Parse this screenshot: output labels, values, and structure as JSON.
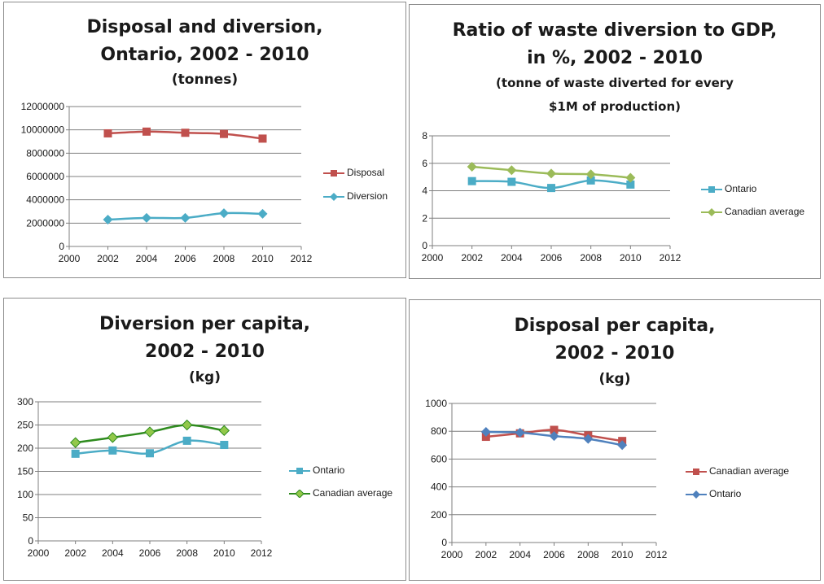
{
  "colors": {
    "disposal": "#c0504d",
    "diversion": "#4bacc6",
    "ontario_blue": "#4f81bd",
    "canada_light": "#9bbb59",
    "canada_dark": "#2e8b1e",
    "canada_dark_fill": "#92c84a",
    "grid": "#7f7f7f"
  },
  "chart_data": [
    {
      "type": "line",
      "title_lines": [
        "Disposal and diversion,",
        "Ontario, 2002 - 2010"
      ],
      "subtitle_lines": [
        "(tonnes)"
      ],
      "x": [
        2002,
        2004,
        2006,
        2008,
        2010
      ],
      "xlim": [
        2000,
        2012
      ],
      "xticks": [
        2000,
        2002,
        2004,
        2006,
        2008,
        2010,
        2012
      ],
      "ylim": [
        0,
        12000000
      ],
      "yticks": [
        0,
        2000000,
        4000000,
        6000000,
        8000000,
        10000000,
        12000000
      ],
      "grid": "horizontal",
      "legend": "right",
      "series": [
        {
          "name": "Disposal",
          "values": [
            9700000,
            9850000,
            9750000,
            9650000,
            9250000
          ],
          "color": "#c0504d",
          "marker": "square"
        },
        {
          "name": "Diversion",
          "values": [
            2300000,
            2450000,
            2450000,
            2850000,
            2800000
          ],
          "color": "#4bacc6",
          "marker": "diamond"
        }
      ]
    },
    {
      "type": "line",
      "title_lines": [
        "Ratio of waste diversion to GDP,",
        "in %, 2002 - 2010"
      ],
      "subtitle_lines": [
        "(tonne of waste diverted for every",
        "$1M of production)"
      ],
      "x": [
        2002,
        2004,
        2006,
        2008,
        2010
      ],
      "xlim": [
        2000,
        2012
      ],
      "xticks": [
        2000,
        2002,
        2004,
        2006,
        2008,
        2010,
        2012
      ],
      "ylim": [
        0,
        8
      ],
      "yticks": [
        0,
        2,
        4,
        6,
        8
      ],
      "grid": "horizontal",
      "legend": "right",
      "series": [
        {
          "name": "Ontario",
          "values": [
            4.7,
            4.65,
            4.2,
            4.75,
            4.45
          ],
          "color": "#4bacc6",
          "marker": "square"
        },
        {
          "name": "Canadian average",
          "values": [
            5.75,
            5.5,
            5.25,
            5.2,
            4.95
          ],
          "color": "#9bbb59",
          "marker": "diamond"
        }
      ]
    },
    {
      "type": "line",
      "title_lines": [
        "Diversion per capita,",
        "2002 - 2010"
      ],
      "subtitle_lines": [
        "(kg)"
      ],
      "x": [
        2002,
        2004,
        2006,
        2008,
        2010
      ],
      "xlim": [
        2000,
        2012
      ],
      "xticks": [
        2000,
        2002,
        2004,
        2006,
        2008,
        2010,
        2012
      ],
      "ylim": [
        0,
        300
      ],
      "yticks": [
        0,
        50,
        100,
        150,
        200,
        250,
        300
      ],
      "grid": "horizontal",
      "legend": "right",
      "series": [
        {
          "name": "Ontario",
          "values": [
            188,
            195,
            189,
            216,
            207
          ],
          "color": "#4bacc6",
          "marker": "square"
        },
        {
          "name": "Canadian average",
          "values": [
            212,
            223,
            235,
            250,
            238
          ],
          "color": "#2e8b1e",
          "marker": "diamond",
          "marker_fill": "#92c84a"
        }
      ]
    },
    {
      "type": "line",
      "title_lines": [
        "Disposal per capita,",
        "2002 - 2010"
      ],
      "subtitle_lines": [
        "(kg)"
      ],
      "x": [
        2002,
        2004,
        2006,
        2008,
        2010
      ],
      "xlim": [
        2000,
        2012
      ],
      "xticks": [
        2000,
        2002,
        2004,
        2006,
        2008,
        2010,
        2012
      ],
      "ylim": [
        0,
        1000
      ],
      "yticks": [
        0,
        200,
        400,
        600,
        800,
        1000
      ],
      "grid": "horizontal",
      "legend": "right",
      "series": [
        {
          "name": "Canadian average",
          "values": [
            760,
            785,
            810,
            770,
            730
          ],
          "color": "#c0504d",
          "marker": "square"
        },
        {
          "name": "Ontario",
          "values": [
            795,
            790,
            765,
            745,
            700
          ],
          "color": "#4f81bd",
          "marker": "diamond"
        }
      ]
    }
  ]
}
